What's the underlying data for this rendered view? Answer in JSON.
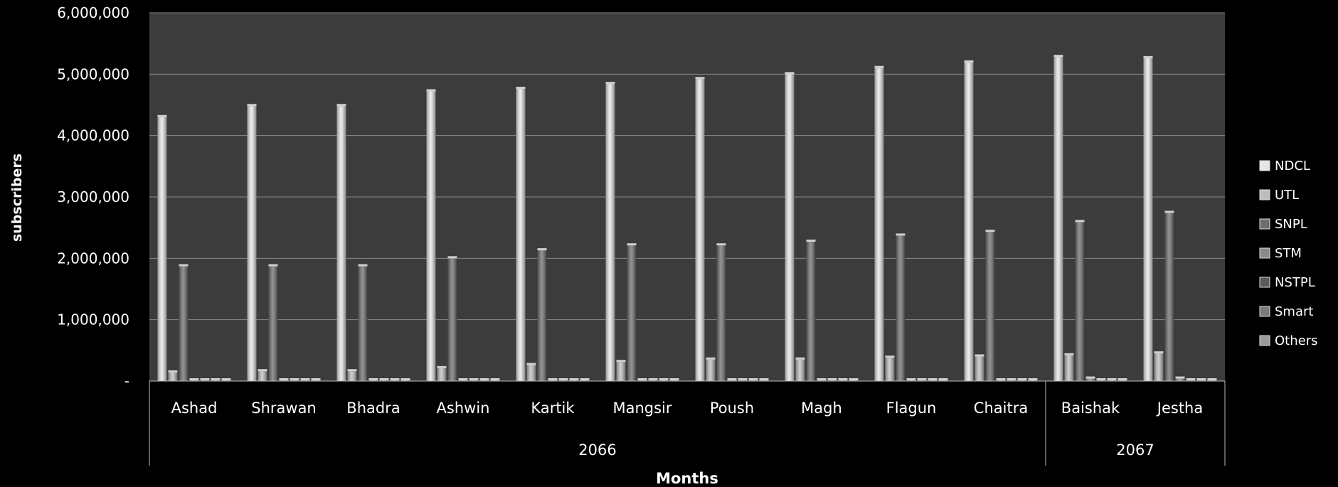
{
  "chart_data": {
    "type": "bar",
    "title": "",
    "xlabel": "Months",
    "ylabel": "subscribers",
    "ylim": [
      0,
      6000000
    ],
    "yticks": [
      0,
      1000000,
      2000000,
      3000000,
      4000000,
      5000000,
      6000000
    ],
    "ytick_labels": [
      "-",
      "1,000,000",
      "2,000,000",
      "3,000,000",
      "4,000,000",
      "5,000,000",
      "6,000,000"
    ],
    "grid": true,
    "legend_position": "right",
    "categories": [
      "Ashad",
      "Shrawan",
      "Bhadra",
      "Ashwin",
      "Kartik",
      "Mangsir",
      "Poush",
      "Magh",
      "Flagun",
      "Chaitra",
      "Baishak",
      "Jestha"
    ],
    "year_groups": [
      {
        "label": "2066",
        "count": 10
      },
      {
        "label": "2067",
        "count": 2
      }
    ],
    "series": [
      {
        "name": "NDCL",
        "color": "#e6e6e6",
        "values": [
          4300000,
          4480000,
          4480000,
          4720000,
          4760000,
          4840000,
          4920000,
          5000000,
          5100000,
          5190000,
          5280000,
          5260000
        ]
      },
      {
        "name": "UTL",
        "color": "#bdbdbd",
        "values": [
          140000,
          160000,
          160000,
          210000,
          260000,
          310000,
          350000,
          350000,
          380000,
          400000,
          420000,
          450000
        ]
      },
      {
        "name": "SNPL",
        "color": "#6e6e6e",
        "values": [
          1870000,
          1870000,
          1870000,
          2000000,
          2130000,
          2210000,
          2210000,
          2270000,
          2370000,
          2430000,
          2590000,
          2740000
        ]
      },
      {
        "name": "STM",
        "color": "#8a8a8a",
        "values": [
          5000,
          5000,
          5000,
          5000,
          5000,
          5000,
          5000,
          5000,
          5000,
          5000,
          40000,
          40000
        ]
      },
      {
        "name": "NSTPL",
        "color": "#5a5a5a",
        "values": [
          5000,
          5000,
          5000,
          5000,
          5000,
          5000,
          5000,
          5000,
          5000,
          5000,
          10000,
          10000
        ]
      },
      {
        "name": "Smart",
        "color": "#7a7a7a",
        "values": [
          5000,
          5000,
          5000,
          5000,
          5000,
          5000,
          5000,
          5000,
          5000,
          5000,
          5000,
          5000
        ]
      },
      {
        "name": "Others",
        "color": "#9a9a9a",
        "values": [
          5000,
          5000,
          5000,
          5000,
          5000,
          5000,
          5000,
          5000,
          5000,
          5000,
          5000,
          5000
        ]
      }
    ]
  }
}
